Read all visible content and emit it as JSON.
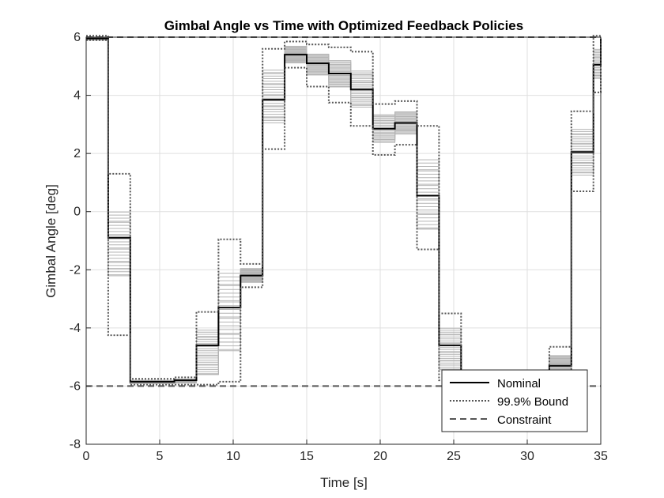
{
  "chart_data": {
    "type": "line",
    "title": "Gimbal Angle vs Time with Optimized Feedback Policies",
    "xlabel": "Time [s]",
    "ylabel": "Gimbal Angle [deg]",
    "xlim": [
      0,
      35
    ],
    "ylim": [
      -8,
      6
    ],
    "xticks": [
      "0",
      "5",
      "10",
      "15",
      "20",
      "25",
      "30",
      "35"
    ],
    "yticks": [
      "-8",
      "-6",
      "-4",
      "-2",
      "0",
      "2",
      "4",
      "6"
    ],
    "grid": true,
    "legend": {
      "placement": "bottom-right",
      "entries": [
        "Nominal",
        "99.9% Bound",
        "Constraint"
      ]
    },
    "step_times": [
      0,
      1.5,
      3,
      4.5,
      6,
      7.5,
      9,
      10.5,
      12,
      13.5,
      15,
      16.5,
      18,
      19.5,
      21,
      22.5,
      24,
      25.5,
      27,
      28.5,
      30,
      31.5,
      33,
      34.5,
      35
    ],
    "series": [
      {
        "name": "Nominal",
        "style": "solid",
        "color": "#000000",
        "values": [
          5.95,
          -0.9,
          -5.85,
          -5.85,
          -5.8,
          -4.6,
          -3.3,
          -2.2,
          3.85,
          5.4,
          5.1,
          4.75,
          4.2,
          2.85,
          3.05,
          0.55,
          -4.6,
          -5.9,
          -5.9,
          -5.85,
          -5.8,
          -5.3,
          2.05,
          5.05,
          5.95
        ]
      },
      {
        "name": "99.9% Bound",
        "style": "dotted",
        "color": "#555555",
        "upper": [
          6.05,
          1.3,
          -5.75,
          -5.75,
          -5.7,
          -3.45,
          -0.95,
          -1.8,
          5.6,
          5.85,
          5.75,
          5.65,
          5.5,
          3.7,
          3.8,
          2.95,
          -3.5,
          -5.75,
          -5.75,
          -5.65,
          -5.5,
          -4.65,
          3.45,
          6.05,
          6.0
        ],
        "lower": [
          5.9,
          -4.25,
          -5.95,
          -5.95,
          -5.95,
          -5.95,
          -5.85,
          -2.6,
          2.15,
          4.95,
          4.3,
          3.75,
          2.95,
          1.95,
          2.3,
          -1.3,
          -5.8,
          -6.0,
          -6.0,
          -6.0,
          -6.0,
          -5.95,
          0.7,
          4.1,
          5.85
        ]
      },
      {
        "name": "Constraint",
        "style": "dashed",
        "color": "#555555",
        "values": [
          6,
          -6
        ]
      }
    ],
    "samples": {
      "color": "#b4b4b4",
      "upper": [
        6.0,
        0.0,
        -5.8,
        -5.8,
        -5.75,
        -4.0,
        -2.1,
        -1.95,
        4.9,
        5.7,
        5.45,
        5.2,
        4.85,
        3.35,
        3.45,
        1.9,
        -4.0,
        -5.8,
        -5.8,
        -5.75,
        -5.7,
        -4.95,
        2.85,
        5.6,
        6.0
      ],
      "lower": [
        5.9,
        -2.3,
        -5.92,
        -5.92,
        -5.9,
        -5.6,
        -4.9,
        -2.45,
        3.0,
        5.1,
        4.7,
        4.25,
        3.55,
        2.35,
        2.65,
        -0.6,
        -5.5,
        -5.97,
        -5.97,
        -5.95,
        -5.92,
        -5.6,
        1.2,
        4.55,
        5.9
      ]
    }
  }
}
